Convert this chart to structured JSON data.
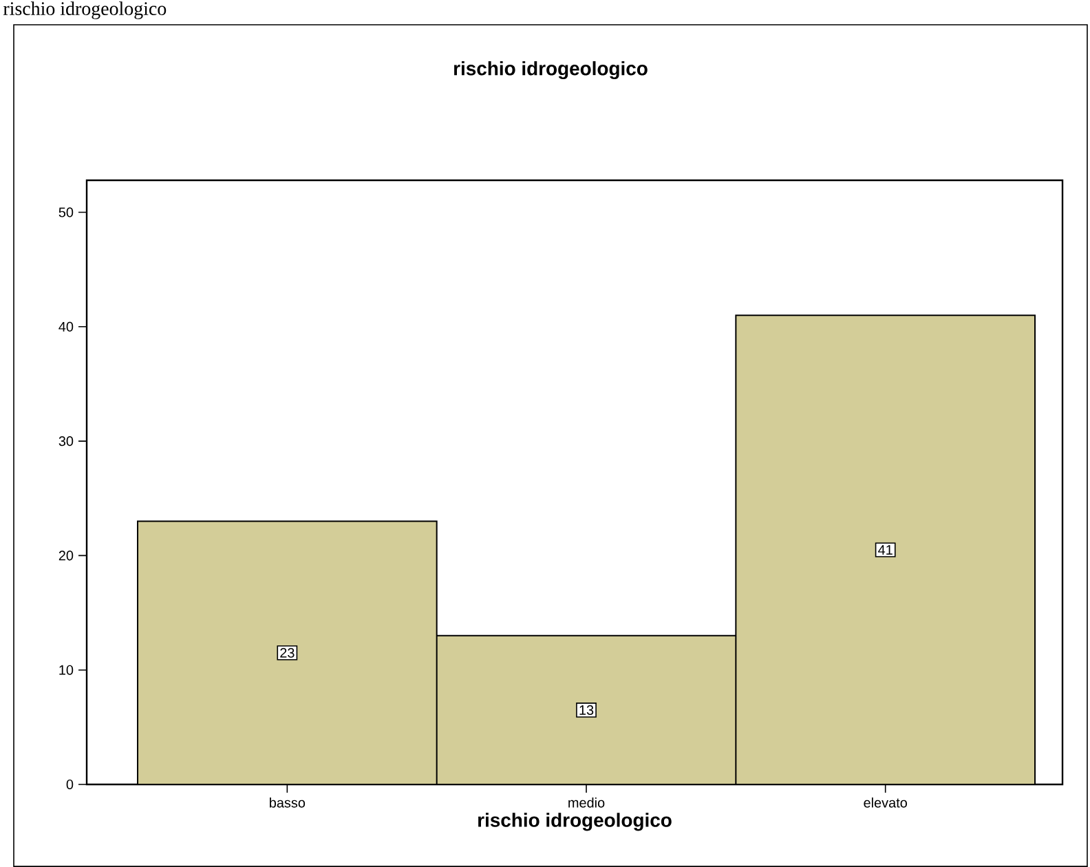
{
  "chart_data": {
    "type": "bar",
    "title": "rischio idrogeologico",
    "xlabel": "rischio idrogeologico",
    "annotations": [
      "rischio idrogeologico"
    ],
    "categories": [
      "basso",
      "medio",
      "elevato"
    ],
    "values": [
      23,
      13,
      41
    ],
    "color": "#d3cd98",
    "ylim": [
      0,
      52.8
    ],
    "yticks": [
      0,
      10,
      20,
      30,
      40,
      50
    ],
    "data_labels": true,
    "grid": false
  }
}
